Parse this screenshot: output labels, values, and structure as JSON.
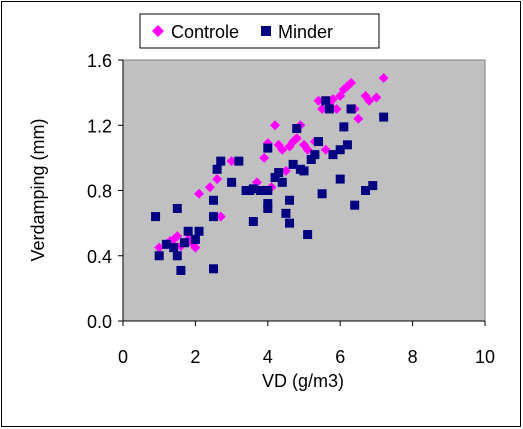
{
  "chart_data": {
    "type": "scatter",
    "title": "",
    "xlabel": "VD  (g/m3)",
    "ylabel": "Verdamping (mm)",
    "xlim": [
      0,
      10
    ],
    "ylim": [
      0,
      1.6
    ],
    "x_ticks": [
      "0",
      "2",
      "4",
      "6",
      "8",
      "10"
    ],
    "y_ticks": [
      "0.0",
      "0.4",
      "0.8",
      "1.2",
      "1.6"
    ],
    "grid": false,
    "legend_position": "top",
    "plot_background": "#c0c0c0",
    "series": [
      {
        "name": "Controle",
        "marker": "diamond",
        "color": "#ff00ff",
        "points": [
          [
            1.0,
            0.45
          ],
          [
            1.2,
            0.47
          ],
          [
            1.3,
            0.49
          ],
          [
            1.4,
            0.5
          ],
          [
            1.5,
            0.52
          ],
          [
            1.6,
            0.46
          ],
          [
            1.8,
            0.5
          ],
          [
            1.9,
            0.48
          ],
          [
            2.0,
            0.45
          ],
          [
            2.1,
            0.78
          ],
          [
            2.4,
            0.82
          ],
          [
            2.6,
            0.87
          ],
          [
            2.7,
            0.64
          ],
          [
            3.0,
            0.98
          ],
          [
            3.5,
            0.8
          ],
          [
            3.7,
            0.85
          ],
          [
            3.9,
            1.0
          ],
          [
            4.0,
            1.09
          ],
          [
            4.1,
            0.82
          ],
          [
            4.2,
            1.2
          ],
          [
            4.3,
            1.08
          ],
          [
            4.4,
            1.05
          ],
          [
            4.5,
            0.92
          ],
          [
            4.6,
            1.07
          ],
          [
            4.7,
            1.1
          ],
          [
            4.8,
            1.12
          ],
          [
            4.9,
            1.2
          ],
          [
            5.0,
            1.08
          ],
          [
            5.1,
            1.05
          ],
          [
            5.2,
            1.0
          ],
          [
            5.3,
            1.1
          ],
          [
            5.4,
            1.35
          ],
          [
            5.5,
            1.3
          ],
          [
            5.6,
            1.05
          ],
          [
            5.7,
            1.33
          ],
          [
            5.8,
            1.36
          ],
          [
            5.9,
            1.3
          ],
          [
            6.0,
            1.38
          ],
          [
            6.1,
            1.42
          ],
          [
            6.2,
            1.44
          ],
          [
            6.3,
            1.46
          ],
          [
            6.4,
            1.3
          ],
          [
            6.5,
            1.24
          ],
          [
            6.7,
            1.38
          ],
          [
            6.8,
            1.35
          ],
          [
            7.0,
            1.37
          ],
          [
            7.2,
            1.49
          ]
        ]
      },
      {
        "name": "Minder",
        "marker": "square",
        "color": "#000080",
        "points": [
          [
            0.9,
            0.64
          ],
          [
            1.0,
            0.4
          ],
          [
            1.2,
            0.47
          ],
          [
            1.4,
            0.45
          ],
          [
            1.5,
            0.69
          ],
          [
            1.5,
            0.4
          ],
          [
            1.6,
            0.31
          ],
          [
            1.7,
            0.48
          ],
          [
            1.8,
            0.55
          ],
          [
            2.0,
            0.5
          ],
          [
            2.1,
            0.55
          ],
          [
            2.5,
            0.74
          ],
          [
            2.5,
            0.64
          ],
          [
            2.5,
            0.32
          ],
          [
            2.6,
            0.93
          ],
          [
            2.7,
            0.98
          ],
          [
            3.0,
            0.85
          ],
          [
            3.2,
            0.98
          ],
          [
            3.4,
            0.8
          ],
          [
            3.6,
            0.61
          ],
          [
            3.6,
            0.81
          ],
          [
            3.8,
            0.8
          ],
          [
            4.0,
            0.8
          ],
          [
            4.0,
            0.72
          ],
          [
            4.0,
            0.69
          ],
          [
            4.2,
            0.88
          ],
          [
            4.3,
            0.91
          ],
          [
            4.4,
            0.85
          ],
          [
            4.5,
            0.66
          ],
          [
            4.6,
            0.74
          ],
          [
            4.6,
            0.6
          ],
          [
            4.7,
            0.96
          ],
          [
            4.8,
            1.18
          ],
          [
            4.9,
            0.93
          ],
          [
            5.0,
            0.92
          ],
          [
            5.1,
            0.53
          ],
          [
            5.2,
            0.99
          ],
          [
            5.3,
            1.02
          ],
          [
            5.4,
            1.1
          ],
          [
            5.5,
            0.78
          ],
          [
            5.6,
            1.35
          ],
          [
            5.7,
            1.3
          ],
          [
            5.8,
            1.02
          ],
          [
            6.0,
            1.05
          ],
          [
            6.0,
            0.87
          ],
          [
            6.1,
            1.19
          ],
          [
            6.2,
            1.08
          ],
          [
            6.3,
            1.3
          ],
          [
            6.4,
            0.71
          ],
          [
            6.7,
            0.8
          ],
          [
            6.9,
            0.83
          ],
          [
            7.2,
            1.25
          ],
          [
            4.0,
            1.06
          ],
          [
            3.5,
            0.8
          ]
        ]
      }
    ]
  }
}
